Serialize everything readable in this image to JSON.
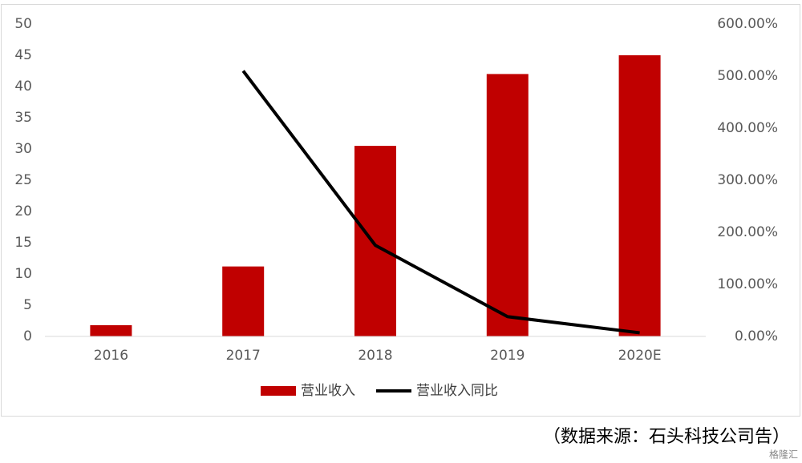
{
  "chart_data": {
    "type": "bar-line",
    "categories": [
      "2016",
      "2017",
      "2018",
      "2019",
      "2020E"
    ],
    "series": [
      {
        "name": "营业收入",
        "color": "#c00000",
        "type": "bar",
        "values": [
          1.8,
          11.2,
          30.5,
          42,
          45
        ]
      },
      {
        "name": "营业收入同比",
        "color": "#000000",
        "type": "line",
        "axis": "y2",
        "values": [
          null,
          510,
          175,
          38,
          7
        ]
      }
    ],
    "ylim": [
      0,
      50
    ],
    "yticks": [
      0,
      5,
      10,
      15,
      20,
      25,
      30,
      35,
      40,
      45,
      50
    ],
    "y2lim": [
      0,
      600
    ],
    "y2ticks": [
      {
        "value": 0,
        "label": "0.00%"
      },
      {
        "value": 100,
        "label": "100.00%"
      },
      {
        "value": 200,
        "label": "200.00%"
      },
      {
        "value": 300,
        "label": "300.00%"
      },
      {
        "value": 400,
        "label": "400.00%"
      },
      {
        "value": 500,
        "label": "500.00%"
      },
      {
        "value": 600,
        "label": "600.00%"
      }
    ],
    "grid": false,
    "legend": "bottom",
    "source": "（数据来源：石头科技公司告）",
    "watermark": "格隆汇"
  }
}
